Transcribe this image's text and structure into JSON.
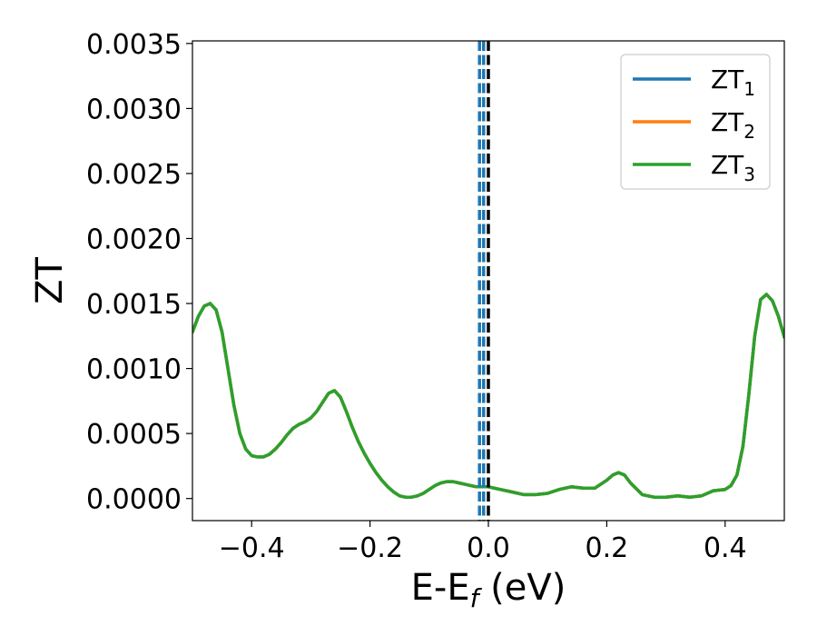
{
  "chart_data": {
    "type": "line",
    "xlabel": "E-E",
    "xlabel_sub": "f",
    "xlabel_unit": " (eV)",
    "ylabel": "ZT",
    "xlim": [
      -0.5,
      0.5
    ],
    "ylim": [
      -0.00017,
      0.00352
    ],
    "x_ticks": [
      -0.4,
      -0.2,
      0.0,
      0.2,
      0.4
    ],
    "x_tick_labels": [
      "−0.4",
      "−0.2",
      "0.0",
      "0.2",
      "0.4"
    ],
    "y_ticks": [
      0.0,
      0.0005,
      0.001,
      0.0015,
      0.002,
      0.0025,
      0.003,
      0.0035
    ],
    "y_tick_labels": [
      "0.0000",
      "0.0005",
      "0.0010",
      "0.0015",
      "0.0020",
      "0.0025",
      "0.0030",
      "0.0035"
    ],
    "grid": false,
    "legend_placement": "top-right",
    "vertical_lines": [
      {
        "x": -0.015,
        "style": "dashed",
        "color": "#1f77b4"
      },
      {
        "x": -0.008,
        "style": "dashed",
        "color": "#1f77b4"
      },
      {
        "x": 0.0,
        "style": "dashed",
        "color": "#000000"
      }
    ],
    "x": [
      -0.5,
      -0.49,
      -0.48,
      -0.47,
      -0.46,
      -0.45,
      -0.44,
      -0.43,
      -0.42,
      -0.41,
      -0.4,
      -0.39,
      -0.38,
      -0.37,
      -0.36,
      -0.35,
      -0.34,
      -0.33,
      -0.32,
      -0.31,
      -0.3,
      -0.29,
      -0.28,
      -0.27,
      -0.26,
      -0.25,
      -0.24,
      -0.23,
      -0.22,
      -0.21,
      -0.2,
      -0.19,
      -0.18,
      -0.17,
      -0.16,
      -0.15,
      -0.14,
      -0.13,
      -0.12,
      -0.11,
      -0.1,
      -0.09,
      -0.08,
      -0.07,
      -0.06,
      -0.05,
      -0.04,
      -0.03,
      -0.02,
      -0.01,
      0.0,
      0.02,
      0.04,
      0.06,
      0.08,
      0.1,
      0.12,
      0.14,
      0.16,
      0.18,
      0.2,
      0.21,
      0.22,
      0.23,
      0.24,
      0.26,
      0.28,
      0.3,
      0.32,
      0.34,
      0.36,
      0.38,
      0.4,
      0.41,
      0.42,
      0.43,
      0.44,
      0.45,
      0.46,
      0.47,
      0.48,
      0.49,
      0.5
    ],
    "series": [
      {
        "name": "ZT1",
        "label_base": "ZT",
        "label_sub": "1",
        "color": "#1f77b4",
        "values": [
          0.00128,
          0.0014,
          0.00148,
          0.0015,
          0.00145,
          0.00128,
          0.001,
          0.00072,
          0.0005,
          0.00038,
          0.00033,
          0.00032,
          0.00032,
          0.00034,
          0.00038,
          0.00043,
          0.00049,
          0.00054,
          0.00057,
          0.00059,
          0.00062,
          0.00067,
          0.00074,
          0.00081,
          0.00083,
          0.00078,
          0.00067,
          0.00055,
          0.00044,
          0.00035,
          0.00027,
          0.0002,
          0.00014,
          9e-05,
          5e-05,
          2e-05,
          1e-05,
          1e-05,
          2e-05,
          4e-05,
          7e-05,
          0.0001,
          0.00012,
          0.00013,
          0.00013,
          0.00012,
          0.00011,
          0.0001,
          9e-05,
          9e-05,
          9e-05,
          7e-05,
          5e-05,
          3e-05,
          3e-05,
          4e-05,
          7e-05,
          9e-05,
          8e-05,
          8e-05,
          0.00014,
          0.00018,
          0.0002,
          0.00018,
          0.00012,
          3e-05,
          1e-05,
          1e-05,
          2e-05,
          1e-05,
          2e-05,
          6e-05,
          7e-05,
          0.0001,
          0.00018,
          0.0004,
          0.0008,
          0.00125,
          0.00153,
          0.00157,
          0.00152,
          0.0014,
          0.00124
        ]
      },
      {
        "name": "ZT2",
        "label_base": "ZT",
        "label_sub": "2",
        "color": "#ff7f0e",
        "values": [
          0.00128,
          0.0014,
          0.00148,
          0.0015,
          0.00145,
          0.00128,
          0.001,
          0.00072,
          0.0005,
          0.00038,
          0.00033,
          0.00032,
          0.00032,
          0.00034,
          0.00038,
          0.00043,
          0.00049,
          0.00054,
          0.00057,
          0.00059,
          0.00062,
          0.00067,
          0.00074,
          0.00081,
          0.00083,
          0.00078,
          0.00067,
          0.00055,
          0.00044,
          0.00035,
          0.00027,
          0.0002,
          0.00014,
          9e-05,
          5e-05,
          2e-05,
          1e-05,
          1e-05,
          2e-05,
          4e-05,
          7e-05,
          0.0001,
          0.00012,
          0.00013,
          0.00013,
          0.00012,
          0.00011,
          0.0001,
          9e-05,
          9e-05,
          9e-05,
          7e-05,
          5e-05,
          3e-05,
          3e-05,
          4e-05,
          7e-05,
          9e-05,
          8e-05,
          8e-05,
          0.00014,
          0.00018,
          0.0002,
          0.00018,
          0.00012,
          3e-05,
          1e-05,
          1e-05,
          2e-05,
          1e-05,
          2e-05,
          6e-05,
          7e-05,
          0.0001,
          0.00018,
          0.0004,
          0.0008,
          0.00125,
          0.00153,
          0.00157,
          0.00152,
          0.0014,
          0.00124
        ]
      },
      {
        "name": "ZT3",
        "label_base": "ZT",
        "label_sub": "3",
        "color": "#2ca02c",
        "values": [
          0.00128,
          0.0014,
          0.00148,
          0.0015,
          0.00145,
          0.00128,
          0.001,
          0.00072,
          0.0005,
          0.00038,
          0.00033,
          0.00032,
          0.00032,
          0.00034,
          0.00038,
          0.00043,
          0.00049,
          0.00054,
          0.00057,
          0.00059,
          0.00062,
          0.00067,
          0.00074,
          0.00081,
          0.00083,
          0.00078,
          0.00067,
          0.00055,
          0.00044,
          0.00035,
          0.00027,
          0.0002,
          0.00014,
          9e-05,
          5e-05,
          2e-05,
          1e-05,
          1e-05,
          2e-05,
          4e-05,
          7e-05,
          0.0001,
          0.00012,
          0.00013,
          0.00013,
          0.00012,
          0.00011,
          0.0001,
          9e-05,
          9e-05,
          9e-05,
          7e-05,
          5e-05,
          3e-05,
          3e-05,
          4e-05,
          7e-05,
          9e-05,
          8e-05,
          8e-05,
          0.00014,
          0.00018,
          0.0002,
          0.00018,
          0.00012,
          3e-05,
          1e-05,
          1e-05,
          2e-05,
          1e-05,
          2e-05,
          6e-05,
          7e-05,
          0.0001,
          0.00018,
          0.0004,
          0.0008,
          0.00125,
          0.00153,
          0.00157,
          0.00152,
          0.0014,
          0.00124
        ]
      }
    ]
  }
}
